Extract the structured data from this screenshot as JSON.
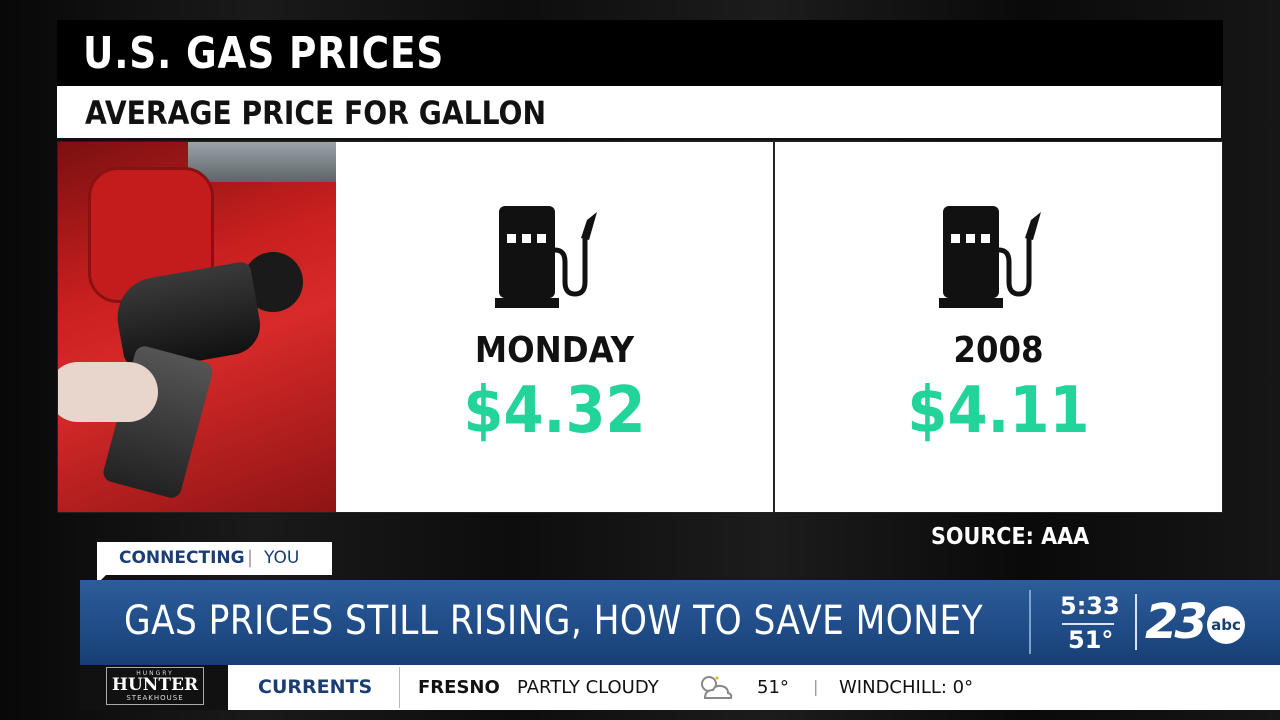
{
  "graphic": {
    "title": "U.S. GAS PRICES",
    "subtitle": "AVERAGE PRICE FOR GALLON",
    "stats": [
      {
        "label": "MONDAY",
        "value": "$4.32"
      },
      {
        "label": "2008",
        "value": "$4.11"
      }
    ],
    "source": "SOURCE: AAA",
    "value_color": "#22d39a",
    "icons": [
      "gas-pump-icon",
      "gas-pump-icon"
    ]
  },
  "tag": {
    "strong": "CONNECTING",
    "separator": "|",
    "light": "YOU"
  },
  "lower_third": {
    "headline": "GAS PRICES STILL RISING, HOW TO SAVE MONEY",
    "time": "5:33",
    "temperature": "51°",
    "logo_number": "23",
    "logo_network": "abc",
    "brand_color": "#1f4b86"
  },
  "ticker": {
    "sponsor_top": "HUNGRY",
    "sponsor_main": "HUNTER",
    "sponsor_sub": "STEAKHOUSE",
    "section": "CURRENTS",
    "city": "FRESNO",
    "condition": "PARTLY CLOUDY",
    "weather_icon": "partly-cloudy-icon",
    "temp": "51°",
    "separator": "|",
    "windchill": "WINDCHILL: 0°"
  }
}
